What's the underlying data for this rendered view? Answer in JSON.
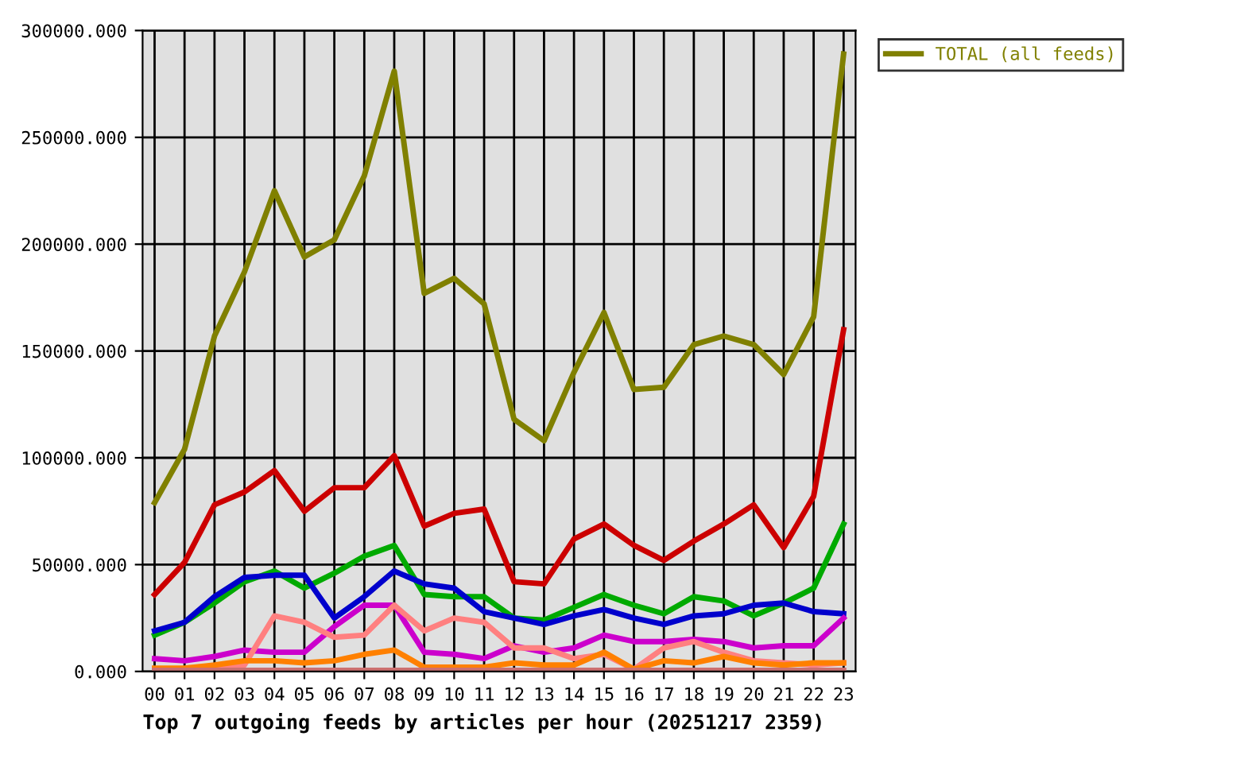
{
  "chart_data": {
    "type": "line",
    "xlabel": "Top 7 outgoing feeds by articles per hour (20251217 2359)",
    "categories": [
      "00",
      "01",
      "02",
      "03",
      "04",
      "05",
      "06",
      "07",
      "08",
      "09",
      "10",
      "11",
      "12",
      "13",
      "14",
      "15",
      "16",
      "17",
      "18",
      "19",
      "20",
      "21",
      "22",
      "23"
    ],
    "series": [
      {
        "color": "#cc0000",
        "values": [
          36000,
          51000,
          78000,
          84000,
          94000,
          75000,
          86000,
          86000,
          101000,
          68000,
          74000,
          76000,
          42000,
          41000,
          62000,
          69000,
          59000,
          52000,
          61000,
          69000,
          78000,
          58000,
          82000,
          160000
        ]
      },
      {
        "color": "#00aa00",
        "values": [
          17000,
          23000,
          32000,
          42000,
          47000,
          39000,
          46000,
          54000,
          59000,
          36000,
          35000,
          35000,
          25000,
          24000,
          30000,
          36000,
          31000,
          27000,
          35000,
          33000,
          26000,
          32000,
          39000,
          69000
        ]
      },
      {
        "color": "#0000cc",
        "values": [
          19000,
          23000,
          35000,
          44000,
          45000,
          45000,
          25000,
          35000,
          47000,
          41000,
          39000,
          28000,
          25000,
          22000,
          26000,
          29000,
          25000,
          22000,
          26000,
          27000,
          31000,
          32000,
          28000,
          27000
        ]
      },
      {
        "color": "#cc00cc",
        "values": [
          6000,
          5000,
          7000,
          10000,
          9000,
          9000,
          21000,
          31000,
          31000,
          9000,
          8000,
          6000,
          12000,
          9000,
          11000,
          17000,
          14000,
          14000,
          15000,
          14000,
          11000,
          12000,
          12000,
          25000
        ]
      },
      {
        "color": "#ff8080",
        "values": [
          1000,
          1000,
          1500,
          3000,
          26000,
          23000,
          16000,
          17000,
          31000,
          19000,
          25000,
          23000,
          11000,
          11000,
          6000,
          8000,
          1000,
          11000,
          14000,
          9000,
          5000,
          4000,
          3000,
          4000
        ]
      },
      {
        "color": "#ff8000",
        "values": [
          1500,
          1500,
          3000,
          5000,
          5000,
          4000,
          5000,
          8000,
          10000,
          2000,
          2000,
          2000,
          4000,
          3000,
          3000,
          9000,
          1000,
          5000,
          4000,
          7000,
          4000,
          3000,
          4000,
          4000
        ]
      },
      {
        "color": "#cc7070",
        "values": [
          500,
          500,
          500,
          500,
          500,
          500,
          500,
          500,
          500,
          500,
          500,
          500,
          500,
          500,
          500,
          500,
          500,
          500,
          500,
          500,
          500,
          500,
          500,
          500
        ]
      },
      {
        "name": "TOTAL (all feeds)",
        "color": "#808000",
        "values": [
          79000,
          104000,
          157000,
          187000,
          225000,
          194000,
          202000,
          232000,
          281000,
          177000,
          184000,
          172000,
          118000,
          108000,
          140000,
          168000,
          132000,
          133000,
          153000,
          157000,
          153000,
          139000,
          166000,
          289000
        ]
      }
    ],
    "ylim": [
      0,
      300000
    ],
    "yticks": [
      {
        "value": 0,
        "label": "0.000"
      },
      {
        "value": 50000,
        "label": "50000.000"
      },
      {
        "value": 100000,
        "label": "100000.000"
      },
      {
        "value": 150000,
        "label": "150000.000"
      },
      {
        "value": 200000,
        "label": "200000.000"
      },
      {
        "value": 250000,
        "label": "250000.000"
      },
      {
        "value": 300000,
        "label": "300000.000"
      }
    ],
    "grid": true,
    "legend": "top right",
    "line_style": "solid"
  }
}
